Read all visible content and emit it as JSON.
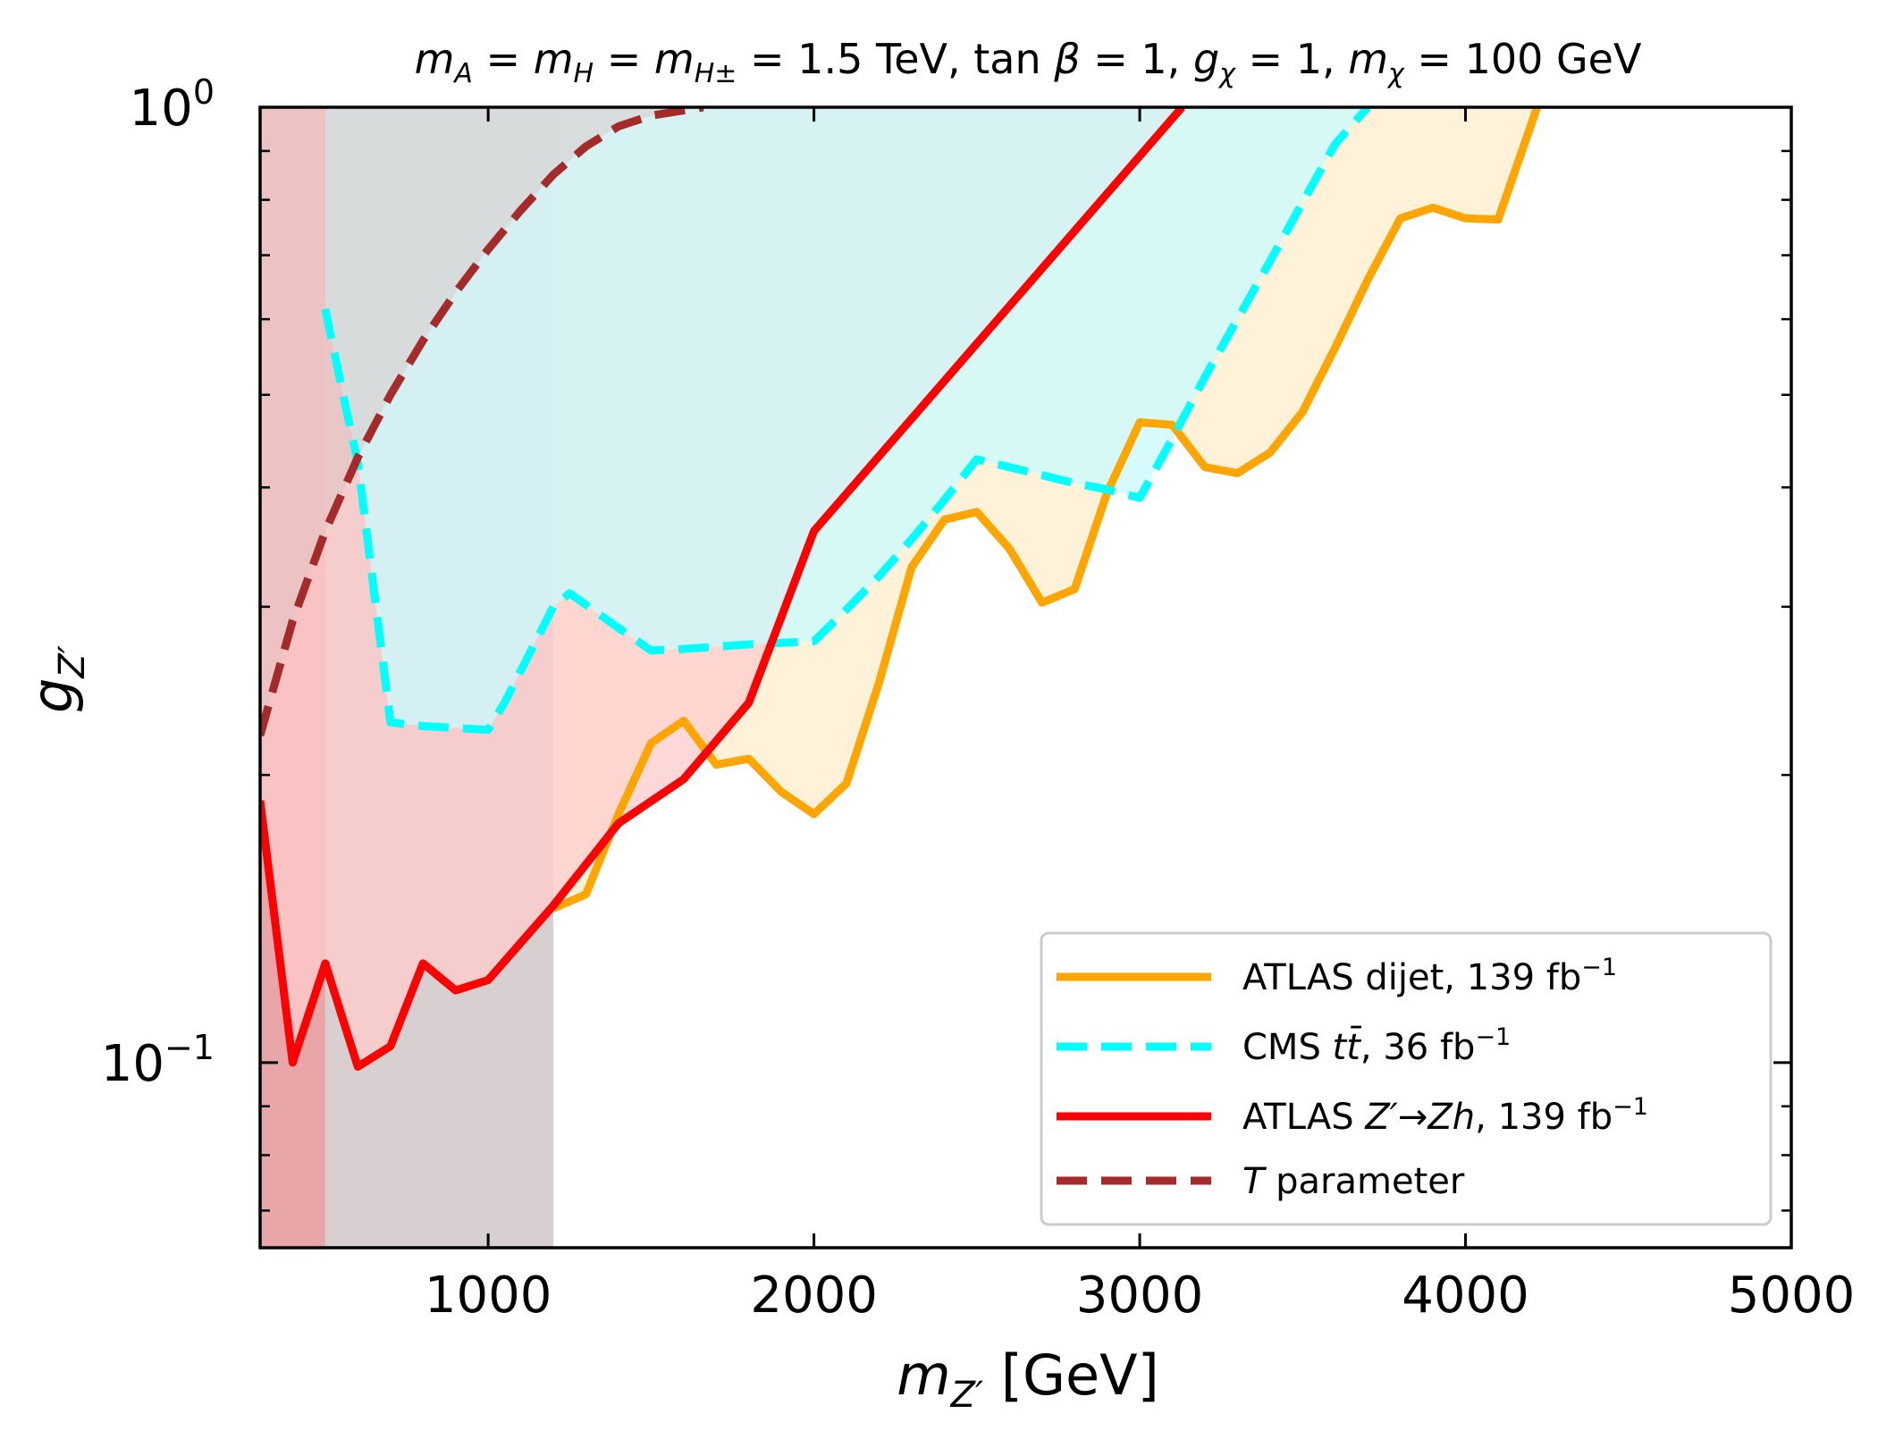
{
  "chart_data": {
    "type": "line",
    "title": "m_A = m_H = m_H± = 1.5 TeV, tan β = 1, g_χ = 1, m_χ = 100 GeV",
    "title_parts": {
      "s1": "m",
      "s1sub": "A",
      "s2": " = ",
      "s3": "m",
      "s3sub": "H",
      "s4": " = ",
      "s5": "m",
      "s5sub": "H±",
      "s6": " = 1.5 TeV, tan ",
      "s7": "β",
      "s8": " = 1, ",
      "s9": "g",
      "s9sub": "χ",
      "s10": " = 1, ",
      "s11": "m",
      "s11sub": "χ",
      "s12": " = 100 GeV"
    },
    "xlabel": "m_Z' [GeV]",
    "xlabel_parts": {
      "m": "m",
      "sub": "Z′",
      "unit": " [GeV]"
    },
    "ylabel": "g_Z'",
    "ylabel_parts": {
      "g": "g",
      "sub": "Z′"
    },
    "xscale": "linear",
    "yscale": "log",
    "xlim": [
      300,
      5000
    ],
    "ylim": [
      0.064,
      1.0
    ],
    "xticks": [
      1000,
      2000,
      3000,
      4000,
      5000
    ],
    "xtick_labels": [
      "1000",
      "2000",
      "3000",
      "4000",
      "5000"
    ],
    "yticks_major": [
      {
        "value": 1.0,
        "base": "10",
        "exp": "0"
      },
      {
        "value": 0.1,
        "base": "10",
        "exp": "−1"
      }
    ],
    "yticks_minor": [
      0.07,
      0.08,
      0.09,
      0.2,
      0.3,
      0.4,
      0.5,
      0.6,
      0.7,
      0.8,
      0.9
    ],
    "series": [
      {
        "name": "ATLAS dijet",
        "color": "#ffa500",
        "fill": "#ffedcc",
        "style": "solid",
        "x": [
          1200,
          1300,
          1400,
          1500,
          1600,
          1700,
          1800,
          1900,
          2000,
          2100,
          2200,
          2300,
          2400,
          2500,
          2600,
          2700,
          2800,
          2900,
          3000,
          3100,
          3200,
          3300,
          3400,
          3500,
          3600,
          3700,
          3800,
          3900,
          4000,
          4100,
          4220
        ],
        "y": [
          0.145,
          0.15,
          0.182,
          0.216,
          0.228,
          0.205,
          0.208,
          0.192,
          0.182,
          0.196,
          0.25,
          0.33,
          0.37,
          0.377,
          0.345,
          0.303,
          0.313,
          0.395,
          0.468,
          0.465,
          0.42,
          0.414,
          0.435,
          0.48,
          0.56,
          0.66,
          0.765,
          0.785,
          0.765,
          0.763,
          1.0
        ]
      },
      {
        "name": "CMS tt̄",
        "color": "#00ffff",
        "fill": "#c8fbff",
        "style": "dashed",
        "x": [
          500,
          560,
          600,
          700,
          800,
          1000,
          1050,
          1200,
          1250,
          1400,
          1500,
          1600,
          1800,
          2000,
          2100,
          2200,
          2300,
          2400,
          2500,
          2600,
          2700,
          2800,
          2900,
          3000,
          3100,
          3200,
          3300,
          3400,
          3500,
          3600,
          3700
        ],
        "y": [
          0.615,
          0.49,
          0.425,
          0.227,
          0.225,
          0.223,
          0.238,
          0.3,
          0.31,
          0.285,
          0.27,
          0.271,
          0.274,
          0.276,
          0.298,
          0.323,
          0.353,
          0.388,
          0.428,
          0.42,
          0.412,
          0.404,
          0.398,
          0.39,
          0.45,
          0.522,
          0.6,
          0.69,
          0.795,
          0.915,
          1.0
        ]
      },
      {
        "name": "ATLAS Z'→Zh",
        "color": "#ff0000",
        "fill": "#ffcccc",
        "style": "solid",
        "x": [
          300,
          400,
          500,
          600,
          700,
          800,
          900,
          1000,
          1200,
          1400,
          1600,
          1800,
          2000,
          3130
        ],
        "y": [
          0.188,
          0.1,
          0.127,
          0.099,
          0.104,
          0.127,
          0.119,
          0.122,
          0.146,
          0.178,
          0.198,
          0.238,
          0.36,
          1.0
        ]
      },
      {
        "name": "T parameter",
        "color": "#a52a2a",
        "fill": "#dcc0c0",
        "style": "dashed",
        "x": [
          300,
          400,
          500,
          600,
          700,
          800,
          900,
          1000,
          1100,
          1200,
          1300,
          1400,
          1500,
          1660
        ],
        "y": [
          0.22,
          0.29,
          0.36,
          0.43,
          0.5,
          0.57,
          0.64,
          0.71,
          0.78,
          0.85,
          0.91,
          0.955,
          0.98,
          1.0
        ]
      }
    ],
    "excluded_mass_bands": [
      {
        "x_from": 300,
        "x_to": 500,
        "color": "#e8a6a8"
      },
      {
        "x_from": 500,
        "x_to": 1200,
        "color": "#d8cfd0"
      }
    ],
    "legend": {
      "position": "lower-right",
      "entries": [
        {
          "label": "ATLAS dijet, 139 fb",
          "sup": "−1",
          "color": "#ffa500",
          "style": "solid"
        },
        {
          "label_pre": "CMS ",
          "label_ital": "t",
          "label_ital2": "t̄",
          "label_post": ", 36 fb",
          "sup": "−1",
          "color": "#00ffff",
          "style": "dashed"
        },
        {
          "label_pre": "ATLAS ",
          "label_ital": "Z′",
          "label_arrow": "→",
          "label_ital2": "Zh",
          "label_post": ", 139 fb",
          "sup": "−1",
          "color": "#ff0000",
          "style": "solid"
        },
        {
          "label_ital": "T",
          "label_post": " parameter",
          "color": "#a52a2a",
          "style": "dashed"
        }
      ]
    }
  }
}
